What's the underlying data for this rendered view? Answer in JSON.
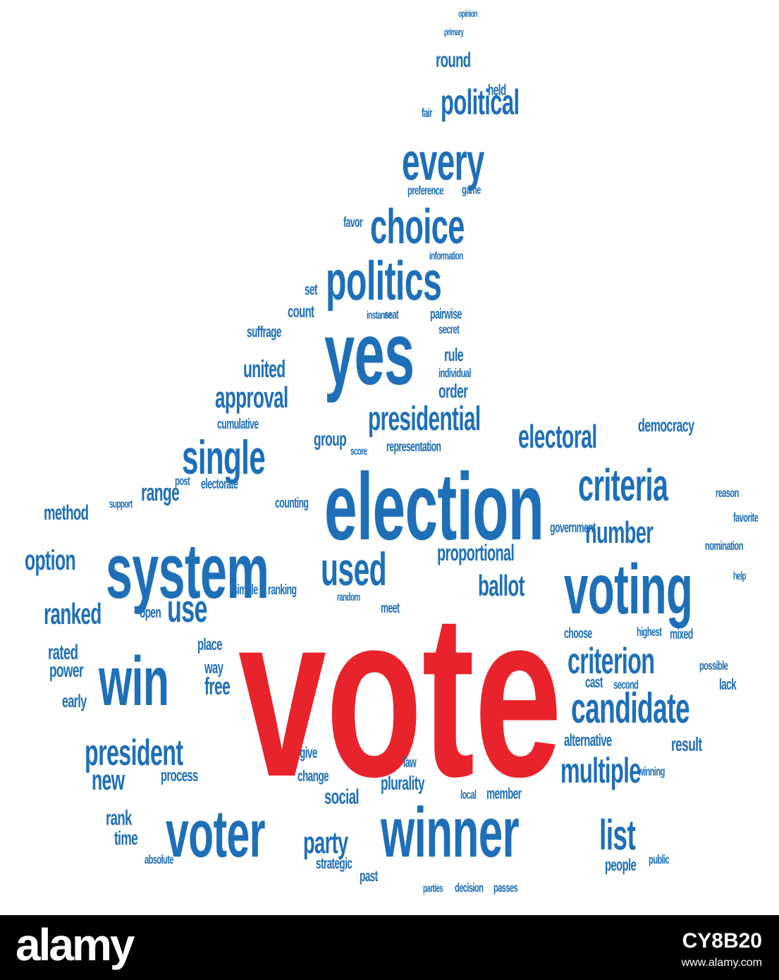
{
  "image": {
    "background": "#ffffff",
    "colors": {
      "primary_words": "#1e6fb8",
      "accent_word": "#e8232b",
      "banner": "#000000",
      "banner_text": "#ffffff"
    },
    "shape": "thumbs-up"
  },
  "word_cloud": {
    "accent_word": "vote",
    "words": [
      "vote",
      "election",
      "system",
      "voting",
      "winner",
      "yes",
      "win",
      "voter",
      "politics",
      "choice",
      "every",
      "political",
      "criteria",
      "candidate",
      "president",
      "single",
      "used",
      "presidential",
      "electoral",
      "criterion",
      "multiple",
      "use",
      "ranked",
      "party",
      "list",
      "approval",
      "united",
      "option",
      "method",
      "ballot",
      "proportional",
      "number",
      "social",
      "new",
      "plurality",
      "round",
      "democracy",
      "range",
      "rated",
      "power",
      "rank",
      "time",
      "result",
      "free",
      "alternative",
      "suffrage",
      "open",
      "group",
      "order",
      "rule",
      "early",
      "process",
      "way",
      "place",
      "people",
      "strategic",
      "past",
      "change",
      "give",
      "law",
      "local",
      "member",
      "cumulative",
      "held",
      "count",
      "set",
      "fair",
      "favor",
      "game",
      "preference",
      "secret",
      "individual",
      "pairwise",
      "seat",
      "representation",
      "counting",
      "electorate",
      "ranking",
      "simple",
      "meet",
      "government",
      "favorite",
      "nomination",
      "help",
      "reason",
      "winning",
      "mixed",
      "highest",
      "choose",
      "cast",
      "second",
      "lack",
      "possible",
      "public",
      "passes",
      "decision",
      "parties",
      "absolute",
      "post",
      "support",
      "information",
      "instance",
      "random",
      "score",
      "opinion",
      "primary"
    ]
  },
  "watermark": {
    "brand": "alamy",
    "image_id": "CY8B20",
    "site": "www.alamy.com"
  }
}
